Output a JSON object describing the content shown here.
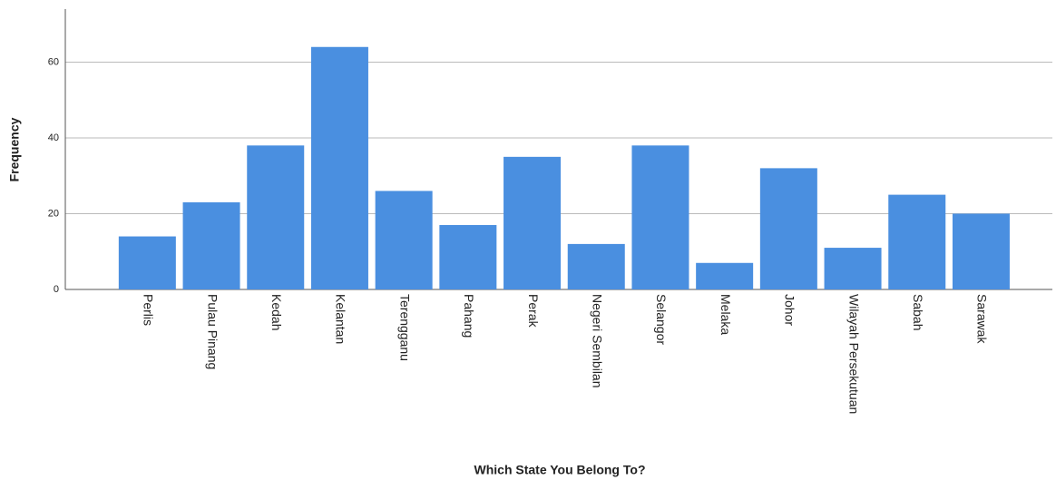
{
  "chart_data": {
    "type": "bar",
    "x_label": "Which State You Belong To?",
    "y_label": "Frequency",
    "categories": [
      "Perlis",
      "Pulau Pinang",
      "Kedah",
      "Kelantan",
      "Terengganu",
      "Pahang",
      "Perak",
      "Negeri Sembilan",
      "Selangor",
      "Melaka",
      "Johor",
      "Wilayah Persekutuan",
      "Sabah",
      "Sarawak"
    ],
    "values": [
      14,
      23,
      38,
      64,
      26,
      17,
      35,
      12,
      38,
      7,
      32,
      11,
      25,
      20
    ],
    "color": "#4a8fe0",
    "ylim": [
      0,
      74
    ],
    "yticks": [
      0,
      20,
      40,
      60
    ],
    "grid": true
  }
}
